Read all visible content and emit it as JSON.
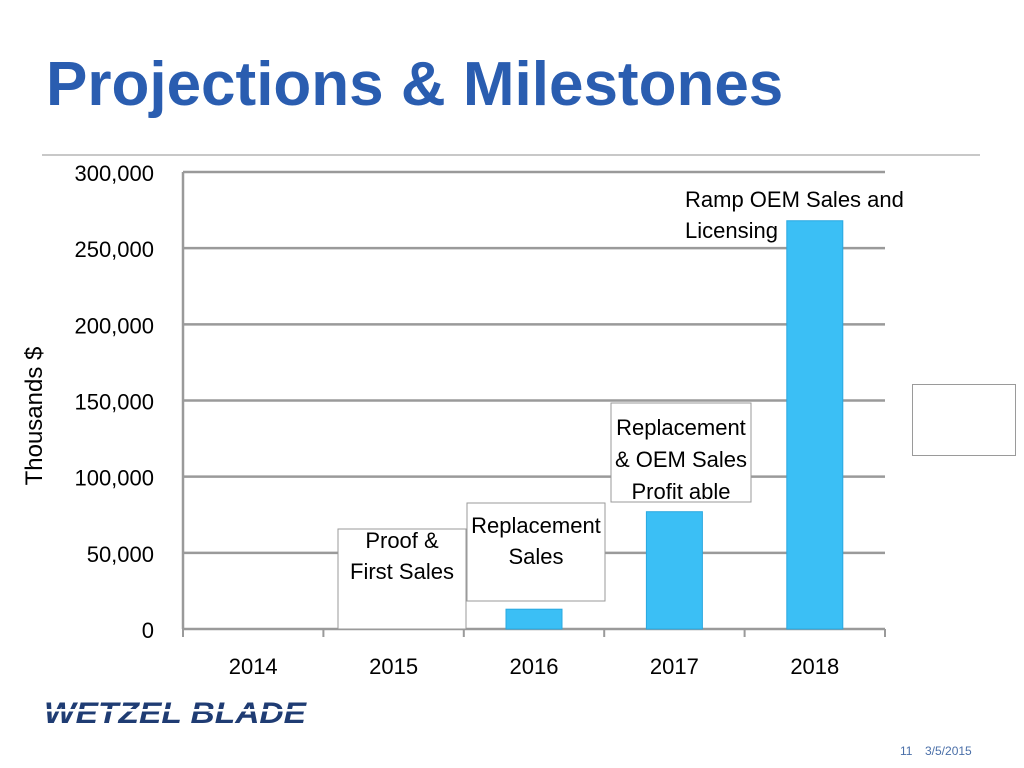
{
  "slide": {
    "title": "Projections & Milestones",
    "logo_text": "WETZEL BLADE",
    "page_number": "11",
    "date": "3/5/2015"
  },
  "chart_data": {
    "type": "bar",
    "categories": [
      "2014",
      "2015",
      "2016",
      "2017",
      "2018"
    ],
    "values": [
      0,
      0,
      13000,
      77000,
      268000
    ],
    "title": "",
    "xlabel": "",
    "ylabel": "Thousands $",
    "ylim": [
      0,
      300000
    ],
    "yticks": [
      "0",
      "50,000",
      "100,000",
      "150,000",
      "200,000",
      "250,000",
      "300,000"
    ],
    "grid": true,
    "bar_color": "#3bbff5",
    "annotations": [
      {
        "category": "2015",
        "text": [
          "Proof  &",
          "First Sales"
        ],
        "boxed": true
      },
      {
        "category": "2016",
        "text": [
          "Replacement",
          "Sales"
        ],
        "boxed": true
      },
      {
        "category": "2017",
        "text": [
          "Replacement",
          "& OEM Sales",
          "Profit able"
        ],
        "boxed": true
      },
      {
        "category": "2018",
        "text": [
          "Ramp OEM Sales and",
          "Licensing"
        ],
        "boxed": false
      }
    ]
  },
  "colors": {
    "title": "#2a5db0",
    "logo": "#1f3c73",
    "gridline": "#9a9a9a"
  }
}
